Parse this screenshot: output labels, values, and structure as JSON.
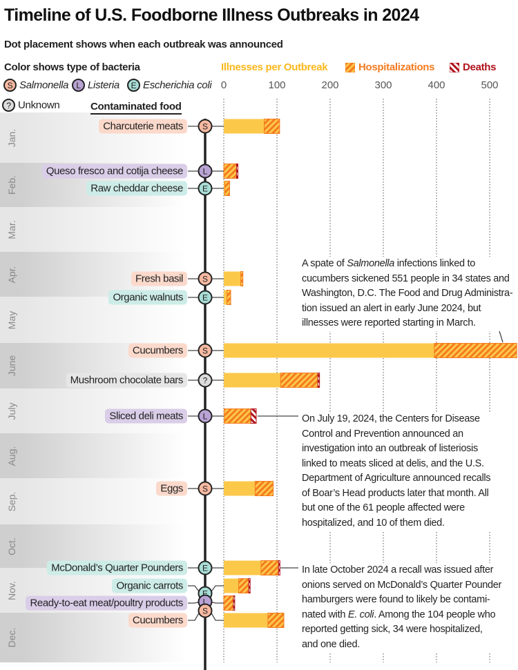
{
  "title": "Timeline of U.S. Foodborne Illness Outbreaks in 2024",
  "subtitle": "Dot placement shows when each outbreak was announced",
  "legend": {
    "color_heading": "Color shows type of bacteria",
    "bacteria": [
      {
        "code": "S",
        "name": "Salmonella",
        "color": "#f7b9a1"
      },
      {
        "code": "L",
        "name": "Listeria",
        "color": "#b9a3d4"
      },
      {
        "code": "E",
        "name": "Escherichia coli",
        "color": "#a8ddd6"
      },
      {
        "code": "?",
        "name": "Unknown",
        "color": "#dcdcdc"
      }
    ],
    "measures": [
      {
        "label": "Illnesses per Outbreak",
        "color": "#f9b81c"
      },
      {
        "label": "Hospitalizations",
        "color": "#f47b20"
      },
      {
        "label": "Deaths",
        "color": "#b0121b"
      }
    ]
  },
  "food_heading": "Contaminated food",
  "months": [
    "Jan.",
    "Feb.",
    "Mar.",
    "Apr.",
    "May",
    "June",
    "July",
    "Aug.",
    "Sep.",
    "Oct.",
    "Nov.",
    "Dec."
  ],
  "chart_data": {
    "type": "bar",
    "orientation": "horizontal",
    "xlim": [
      0,
      550
    ],
    "xticks": [
      "0",
      "100",
      "200",
      "300",
      "400",
      "500"
    ],
    "grid": true,
    "legend_placement": "top",
    "categories": [
      "Charcuterie meats",
      "Queso fresco and cotija cheese",
      "Raw cheddar cheese",
      "Fresh basil",
      "Organic walnuts",
      "Cucumbers",
      "Mushroom chocolate bars",
      "Sliced deli meats",
      "Eggs",
      "McDonald’s Quarter Pounders",
      "Organic carrots",
      "Ready-to-eat meat/poultry products",
      "Cucumbers"
    ],
    "bacteria": [
      "S",
      "L",
      "E",
      "S",
      "E",
      "S",
      "?",
      "L",
      "S",
      "E",
      "E",
      "L",
      "S"
    ],
    "announced_month": [
      "Jan.",
      "Feb.",
      "Feb.",
      "Apr.",
      "Apr.",
      "June",
      "June",
      "July",
      "Sep.",
      "Nov.",
      "Nov.",
      "Nov.",
      "Dec."
    ],
    "series": [
      {
        "name": "Illnesses per Outbreak",
        "values": [
          105,
          26,
          11,
          36,
          13,
          551,
          180,
          61,
          93,
          104,
          48,
          19,
          113
        ]
      },
      {
        "name": "Hospitalizations",
        "values": [
          29,
          26,
          9,
          4,
          7,
          155,
          73,
          60,
          34,
          34,
          20,
          19,
          30
        ]
      },
      {
        "name": "Deaths",
        "values": [
          0,
          2,
          0,
          0,
          0,
          0,
          3,
          10,
          0,
          1,
          1,
          1,
          0
        ]
      }
    ]
  },
  "annotations": [
    {
      "lines": [
        [
          {
            "t": "A spate of "
          },
          {
            "t": "Salmonella",
            "i": true
          },
          {
            "t": " infections linked to"
          }
        ],
        [
          {
            "t": "cucumbers sickened 551 people in 34 states and"
          }
        ],
        [
          {
            "t": "Washington, D.C. The Food and Drug Administra-"
          }
        ],
        [
          {
            "t": "tion issued an alert in early June 2024, but"
          }
        ],
        [
          {
            "t": "illnesses were reported starting in March."
          }
        ]
      ]
    },
    {
      "lines": [
        [
          {
            "t": "On July 19, 2024, the Centers for Disease"
          }
        ],
        [
          {
            "t": "Control and Prevention announced an"
          }
        ],
        [
          {
            "t": "investigation into an outbreak of listeriosis"
          }
        ],
        [
          {
            "t": "linked to meats sliced at delis, and the U.S."
          }
        ],
        [
          {
            "t": "Department of Agriculture announced recalls"
          }
        ],
        [
          {
            "t": "of Boar’s Head products later that month. All"
          }
        ],
        [
          {
            "t": "but one of the 61 people affected were"
          }
        ],
        [
          {
            "t": "hospitalized, and 10 of them died."
          }
        ]
      ]
    },
    {
      "lines": [
        [
          {
            "t": "In late October 2024 a recall was issued after"
          }
        ],
        [
          {
            "t": "onions served on McDonald’s Quarter Pounder"
          }
        ],
        [
          {
            "t": "hamburgers were found to likely be contami-"
          }
        ],
        [
          {
            "t": "nated with "
          },
          {
            "t": "E. coli",
            "i": true
          },
          {
            "t": ". Among the 104 people who"
          }
        ],
        [
          {
            "t": "reported getting sick, 34 were hospitalized,"
          }
        ],
        [
          {
            "t": "and one died."
          }
        ]
      ]
    }
  ]
}
